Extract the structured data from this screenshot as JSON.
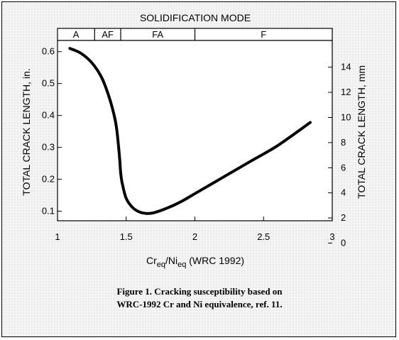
{
  "chart_data": {
    "type": "line",
    "band_title": "SOLIDIFICATION MODE",
    "modes": [
      {
        "label": "A",
        "from": 1.0,
        "to": 1.27
      },
      {
        "label": "AF",
        "from": 1.27,
        "to": 1.46
      },
      {
        "label": "FA",
        "from": 1.46,
        "to": 2.0
      },
      {
        "label": "F",
        "from": 2.0,
        "to": 3.0
      }
    ],
    "xlabel_main": "Cr",
    "xlabel_sub1": "eq",
    "xlabel_mid": "/Ni",
    "xlabel_sub2": "eq",
    "xlabel_tail": " (WRC 1992)",
    "ylabel_left": "TOTAL CRACK LENGTH, in.",
    "ylabel_right": "TOTAL CRACK LENGTH, mm",
    "xlim": [
      1,
      3
    ],
    "ylim": [
      0.07,
      0.635
    ],
    "x_ticks": [
      1,
      1.5,
      2,
      2.5,
      3
    ],
    "x_tick_labels": [
      "1",
      "1.5",
      "2",
      "2.5",
      "3"
    ],
    "y_ticks": [
      0.1,
      0.2,
      0.3,
      0.4,
      0.5,
      0.6
    ],
    "y_tick_labels": [
      "0.1",
      "0.2",
      "0.3",
      "0.4",
      "0.5",
      "0.6"
    ],
    "y2_ticks_mm": [
      0,
      2,
      4,
      6,
      8,
      10,
      12,
      14
    ],
    "y2_tick_labels": [
      "0",
      "2",
      "4",
      "6",
      "8",
      "10",
      "12",
      "14"
    ],
    "y2_mm_per_unit": 25.4,
    "grid": false,
    "series": [
      {
        "x": [
          1.09,
          1.17,
          1.25,
          1.32,
          1.37,
          1.41,
          1.43,
          1.445,
          1.455,
          1.46,
          1.47,
          1.5,
          1.55,
          1.6,
          1.65,
          1.7,
          1.8,
          1.9,
          2.0,
          2.2,
          2.4,
          2.6,
          2.84
        ],
        "y": [
          0.61,
          0.595,
          0.565,
          0.52,
          0.465,
          0.405,
          0.36,
          0.3,
          0.25,
          0.22,
          0.19,
          0.14,
          0.11,
          0.097,
          0.093,
          0.095,
          0.11,
          0.13,
          0.155,
          0.205,
          0.255,
          0.305,
          0.378
        ]
      }
    ]
  },
  "caption": {
    "line1": "Figure 1.  Cracking susceptibility based on",
    "line2": "WRC-1992 Cr and Ni equivalence, ref. 11."
  }
}
